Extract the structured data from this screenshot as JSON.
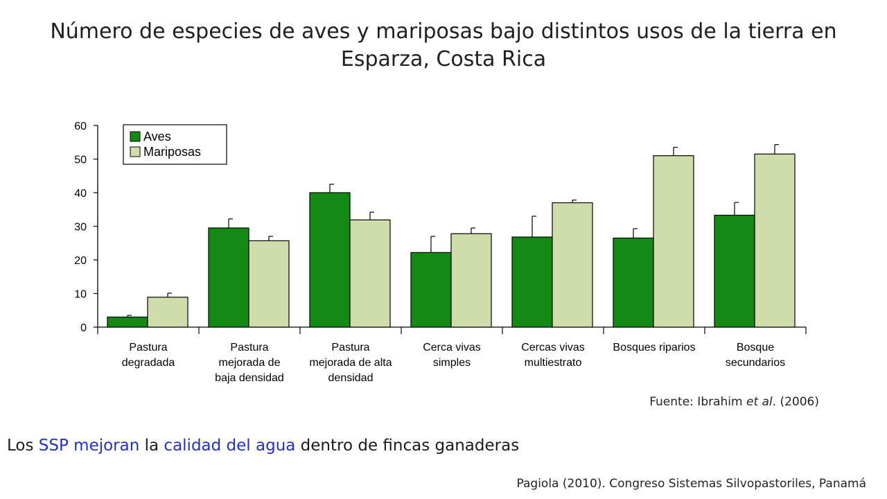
{
  "title": {
    "line1": "Número de especies de aves y mariposas bajo distintos usos de la tierra en",
    "line2": "Esparza, Costa Rica"
  },
  "chart_data": {
    "type": "bar",
    "title": "",
    "xlabel": "",
    "ylabel": "",
    "ylim": [
      0,
      60
    ],
    "yticks": [
      0,
      10,
      20,
      30,
      40,
      50,
      60
    ],
    "grid": false,
    "legend_position": "top-left",
    "categories": [
      [
        "Pastura",
        "degradada"
      ],
      [
        "Pastura",
        "mejorada de",
        "baja densidad"
      ],
      [
        "Pastura",
        "mejorada de alta",
        "densidad"
      ],
      [
        "Cerca vivas",
        "simples"
      ],
      [
        "Cercas vivas",
        "multiestrato"
      ],
      [
        "Bosques riparios"
      ],
      [
        "Bosque",
        "secundarios"
      ]
    ],
    "series": [
      {
        "name": "Aves",
        "color": "#138a13",
        "values": [
          3,
          29.5,
          40,
          22.2,
          26.8,
          26.5,
          33.3
        ],
        "errors": [
          0.5,
          2.7,
          2.5,
          4.8,
          6.2,
          2.8,
          3.8
        ]
      },
      {
        "name": "Mariposas",
        "color": "#cfddab",
        "values": [
          8.9,
          25.7,
          31.9,
          27.8,
          37,
          51,
          51.5
        ],
        "errors": [
          1.2,
          1.3,
          2.3,
          1.7,
          0.8,
          2.5,
          2.8
        ]
      }
    ]
  },
  "source": {
    "prefix": "Fuente: Ibrahim ",
    "italic": "et al",
    "suffix": ". (2006)"
  },
  "caption": {
    "part1": "Los ",
    "part2": "SSP mejoran",
    "part3": " la ",
    "part4": "calidad del agua",
    "part5": " dentro de fincas ganaderas"
  },
  "citation": "Pagiola (2010). Congreso Sistemas Silvopastoriles, Panamá"
}
